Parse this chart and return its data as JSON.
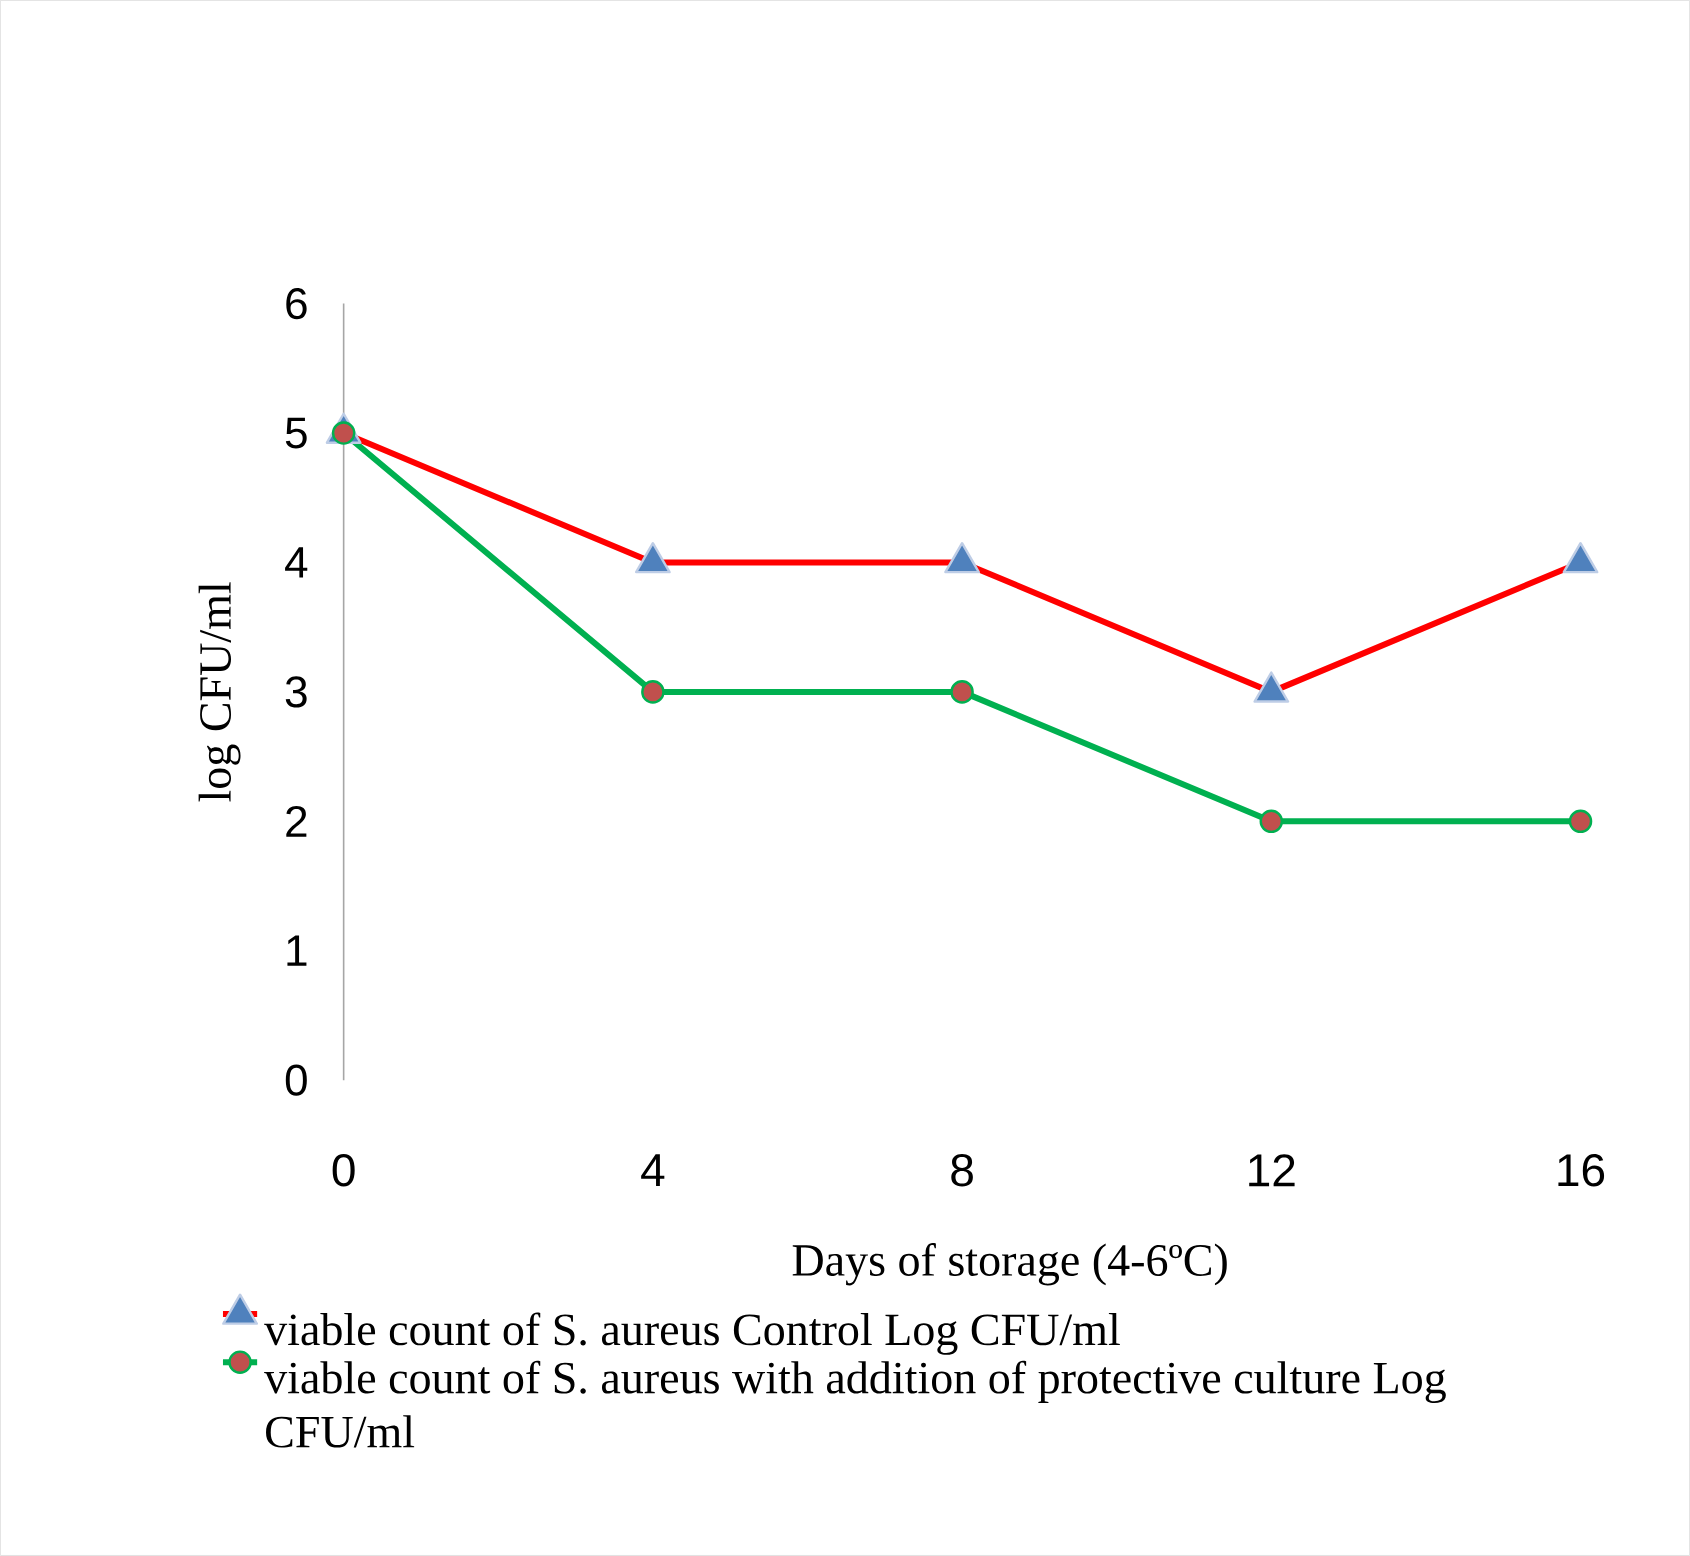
{
  "chart_data": {
    "type": "line",
    "xlabel": "Days of storage (4-6ºC)",
    "ylabel": "log CFU/ml",
    "categories": [
      "0",
      "4",
      "8",
      "12",
      "16"
    ],
    "series": [
      {
        "name": "viable count of S. aureus Control Log CFU/ml",
        "color": "#ff0000",
        "marker": "triangle",
        "values": [
          5,
          4,
          4,
          3,
          4
        ]
      },
      {
        "name": "viable count of S. aureus with addition of protective culture Log CFU/ml",
        "color": "#00b050",
        "marker": "circle",
        "values": [
          5,
          3,
          3,
          2,
          2
        ]
      }
    ],
    "ylim": [
      0,
      6
    ],
    "yticks": [
      0,
      1,
      2,
      3,
      4,
      5,
      6
    ],
    "grid": false,
    "legend": "bottom"
  }
}
